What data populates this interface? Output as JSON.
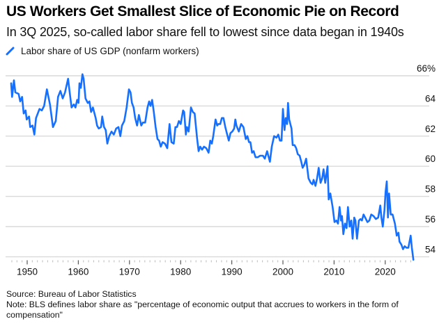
{
  "title": "US Workers Get Smallest Slice of Economic Pie on Record",
  "subtitle": "In 3Q 2025, so-called labor share fell to lowest since data began in 1940s",
  "legend": {
    "icon": "line-swatch-icon",
    "label": "Labor share of US GDP (nonfarm workers)"
  },
  "footer": {
    "source": "Source: Bureau of Labor Statistics",
    "note": "Note: BLS defines labor share as \"percentage of economic output that accrues to workers in the form of compensation\""
  },
  "colors": {
    "line": "#1570ff",
    "grid": "#d9d9d9",
    "text": "#111111"
  },
  "chart_data": {
    "type": "line",
    "title": "US Workers Get Smallest Slice of Economic Pie on Record",
    "subtitle": "In 3Q 2025, so-called labor share fell to lowest since data began in 1940s",
    "xlabel": "",
    "ylabel": "",
    "xlim": [
      1946.5,
      2026.5
    ],
    "ylim": [
      53.8,
      66.5
    ],
    "grid": true,
    "legend_position": "top-left",
    "y_axis_side": "right",
    "x_ticks": [
      1950,
      1960,
      1970,
      1980,
      1990,
      2000,
      2010,
      2020
    ],
    "x_tick_labels": [
      "1950",
      "1960",
      "1970",
      "1980",
      "1990",
      "2000",
      "2010",
      "2020"
    ],
    "y_ticks": [
      54,
      56,
      58,
      60,
      62,
      64,
      66
    ],
    "y_tick_labels": [
      "54",
      "56",
      "58",
      "60",
      "62",
      "64",
      "66%"
    ],
    "series": [
      {
        "name": "Labor share of US GDP (nonfarm workers)",
        "x": [
          1946.87,
          1947.04,
          1947.41,
          1947.68,
          1948.32,
          1948.64,
          1949.01,
          1949.32,
          1949.69,
          1949.9,
          1950.37,
          1950.59,
          1951.05,
          1951.4,
          1951.73,
          1952.41,
          1952.86,
          1953.31,
          1953.86,
          1954.46,
          1955.04,
          1955.59,
          1956.04,
          1956.5,
          1956.95,
          1957.4,
          1958.0,
          1958.31,
          1958.68,
          1959.13,
          1959.44,
          1959.77,
          1960.04,
          1960.22,
          1960.49,
          1960.8,
          1961.04,
          1961.4,
          1961.85,
          1962.17,
          1962.49,
          1962.85,
          1963.39,
          1963.66,
          1963.99,
          1964.44,
          1964.67,
          1965.03,
          1965.35,
          1965.67,
          1966.04,
          1966.49,
          1966.93,
          1967.4,
          1967.85,
          1968.22,
          1968.53,
          1968.98,
          1969.44,
          1969.89,
          1970.2,
          1970.48,
          1970.8,
          1971.12,
          1971.48,
          1971.84,
          1972.3,
          1972.62,
          1973.07,
          1973.53,
          1973.84,
          1974.11,
          1974.43,
          1974.75,
          1975.11,
          1975.48,
          1975.79,
          1976.12,
          1976.47,
          1976.93,
          1977.38,
          1977.83,
          1978.2,
          1978.65,
          1978.98,
          1979.29,
          1979.66,
          1980.01,
          1980.48,
          1980.69,
          1981.02,
          1981.24,
          1981.57,
          1982.02,
          1982.38,
          1982.74,
          1983.2,
          1983.51,
          1983.83,
          1984.2,
          1984.56,
          1985.01,
          1985.46,
          1985.79,
          1986.1,
          1986.38,
          1986.83,
          1987.15,
          1987.37,
          1987.74,
          1988.05,
          1988.38,
          1988.73,
          1989.1,
          1989.41,
          1989.74,
          1990.1,
          1990.46,
          1990.69,
          1990.91,
          1991.38,
          1991.83,
          1992.27,
          1992.74,
          1993.05,
          1993.37,
          1993.64,
          1993.96,
          1994.28,
          1994.65,
          1995.1,
          1995.54,
          1996.09,
          1996.46,
          1996.91,
          1997.45,
          1997.82,
          1998.27,
          1998.73,
          1999.09,
          1999.41,
          1999.73,
          2000.0,
          2000.31,
          2000.54,
          2000.82,
          2000.99,
          2001.23,
          2001.68,
          2001.91,
          2002.28,
          2002.59,
          2002.9,
          2003.27,
          2003.58,
          2003.86,
          2004.18,
          2004.54,
          2005.0,
          2005.45,
          2005.76,
          2006.0,
          2006.36,
          2006.68,
          2006.99,
          2007.36,
          2007.67,
          2007.94,
          2008.27,
          2008.72,
          2008.95,
          2009.26,
          2009.71,
          2010.08,
          2010.45,
          2010.76,
          2011.08,
          2011.35,
          2011.54,
          2011.81,
          2012.13,
          2012.44,
          2012.71,
          2013.04,
          2013.35,
          2013.62,
          2013.94,
          2014.17,
          2014.48,
          2014.85,
          2015.16,
          2015.44,
          2015.76,
          2016.08,
          2016.53,
          2016.89,
          2017.26,
          2017.71,
          2018.16,
          2018.62,
          2019.03,
          2019.25,
          2019.52,
          2019.85,
          2020.07,
          2020.3,
          2020.53,
          2020.75,
          2021.08,
          2021.43,
          2021.9,
          2022.25,
          2022.58,
          2022.79,
          2023.16,
          2023.47,
          2023.8,
          2024.16,
          2024.52,
          2024.97,
          2025.2,
          2025.51
        ],
        "values": [
          65.5,
          64.6,
          65.7,
          64.9,
          64.8,
          64.3,
          64.6,
          63.5,
          63.7,
          63.1,
          63.3,
          62.6,
          62.7,
          62.1,
          63.2,
          63.8,
          63.7,
          64.0,
          65.1,
          64.1,
          62.6,
          63.0,
          64.6,
          65.0,
          64.5,
          64.9,
          65.8,
          64.9,
          63.9,
          64.1,
          63.9,
          64.4,
          64.2,
          65.5,
          65.2,
          66.1,
          65.8,
          64.5,
          64.2,
          64.3,
          63.6,
          63.9,
          63.2,
          62.7,
          62.5,
          62.6,
          63.3,
          62.6,
          62.4,
          61.5,
          62.0,
          62.3,
          62.1,
          62.5,
          62.6,
          62.0,
          62.7,
          63.0,
          63.9,
          65.1,
          64.9,
          64.2,
          63.9,
          63.2,
          62.7,
          63.4,
          62.7,
          62.9,
          62.9,
          63.9,
          64.3,
          64.0,
          64.4,
          63.6,
          62.6,
          61.8,
          61.7,
          61.3,
          61.6,
          61.5,
          61.2,
          62.8,
          61.6,
          61.5,
          62.6,
          62.6,
          63.0,
          62.8,
          63.7,
          63.6,
          62.1,
          62.6,
          62.3,
          63.9,
          63.6,
          63.5,
          61.9,
          61.0,
          61.3,
          61.1,
          61.3,
          61.2,
          60.9,
          61.7,
          61.5,
          62.0,
          63.1,
          62.7,
          62.8,
          62.8,
          63.2,
          63.2,
          62.6,
          62.1,
          61.7,
          62.2,
          62.3,
          62.5,
          63.1,
          62.7,
          62.3,
          62.8,
          62.6,
          61.8,
          62.0,
          61.6,
          61.6,
          60.9,
          61.0,
          60.6,
          60.6,
          60.7,
          60.7,
          60.5,
          61.0,
          60.3,
          61.3,
          62.0,
          61.9,
          62.1,
          61.7,
          61.7,
          63.8,
          62.4,
          63.2,
          62.8,
          64.2,
          63.1,
          62.5,
          61.4,
          61.4,
          61.2,
          60.8,
          60.7,
          60.3,
          59.9,
          60.1,
          60.5,
          59.2,
          58.9,
          58.8,
          59.1,
          58.7,
          59.2,
          59.9,
          58.9,
          59.2,
          59.8,
          58.9,
          60.0,
          57.8,
          58.2,
          57.3,
          56.3,
          56.4,
          56.2,
          57.3,
          56.4,
          56.7,
          55.5,
          56.2,
          55.9,
          57.3,
          56.0,
          56.4,
          55.2,
          56.6,
          56.4,
          55.2,
          56.4,
          56.5,
          56.4,
          56.8,
          56.6,
          56.3,
          56.4,
          56.8,
          56.7,
          56.5,
          56.6,
          57.4,
          56.6,
          56.0,
          57.1,
          58.3,
          59.0,
          56.6,
          58.2,
          56.8,
          56.8,
          56.2,
          55.4,
          55.6,
          55.0,
          54.8,
          54.5,
          54.7,
          54.6,
          54.6,
          55.4,
          54.6,
          53.8
        ]
      }
    ]
  }
}
